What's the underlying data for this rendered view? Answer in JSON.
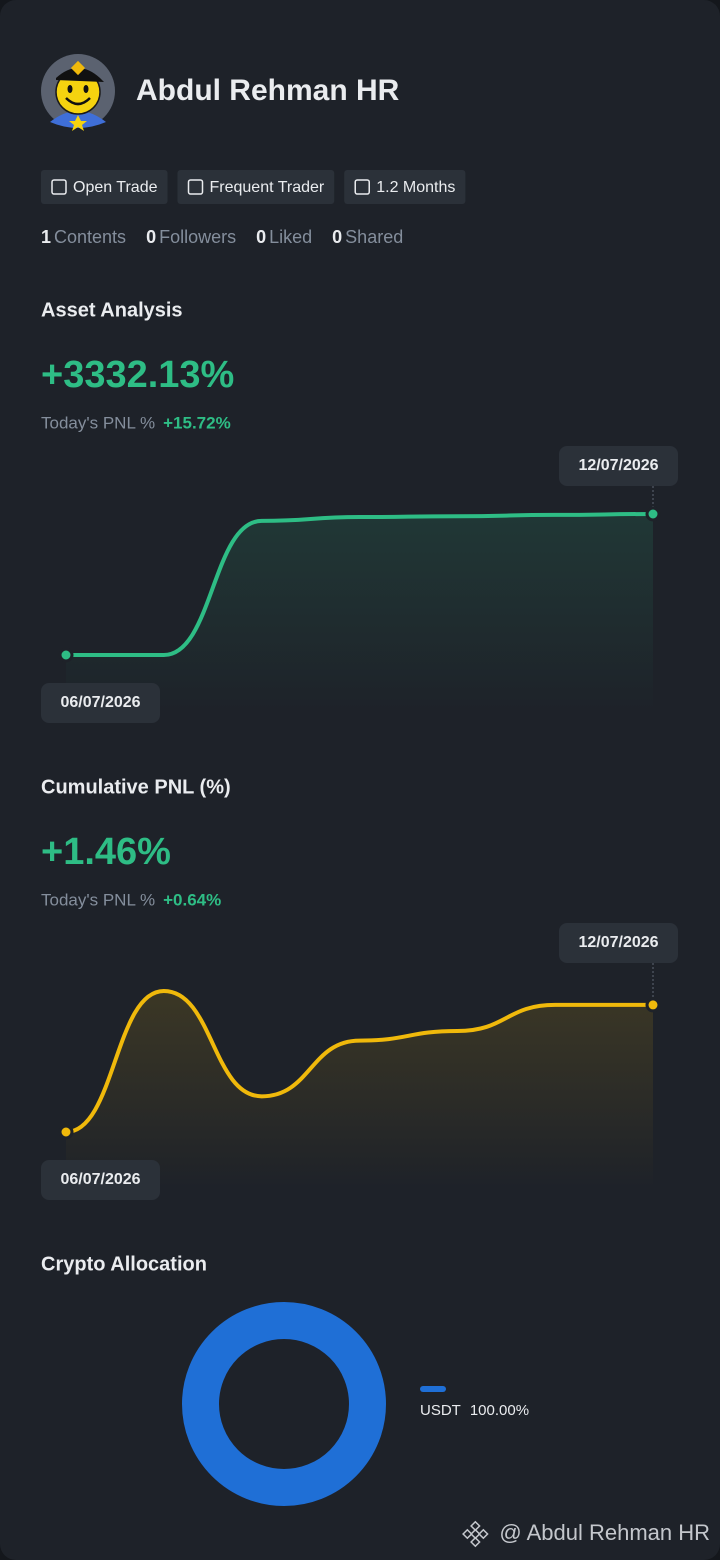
{
  "profile": {
    "name": "Abdul Rehman HR",
    "tags": [
      "Open Trade",
      "Frequent Trader",
      "1.2 Months"
    ],
    "stats": [
      {
        "value": 1,
        "label": "Contents"
      },
      {
        "value": 0,
        "label": "Followers"
      },
      {
        "value": 0,
        "label": "Liked"
      },
      {
        "value": 0,
        "label": "Shared"
      }
    ]
  },
  "chart_data": [
    {
      "type": "line",
      "title": "Asset Analysis",
      "headline": "+3332.13%",
      "pnl_label": "Today's PNL %",
      "pnl_value": "+15.72%",
      "categories": [
        "06/07/2026",
        null,
        null,
        null,
        null,
        null,
        "12/07/2026"
      ],
      "series": [
        {
          "color": "#2ebd85",
          "values": [
            0,
            0,
            3170,
            3260,
            3280,
            3310,
            3332.13
          ]
        }
      ]
    },
    {
      "type": "line",
      "title": "Cumulative PNL (%)",
      "headline": "+1.46%",
      "pnl_label": "Today's PNL %",
      "pnl_value": "+0.64%",
      "categories": [
        "06/07/2026",
        null,
        null,
        null,
        null,
        null,
        "12/07/2026"
      ],
      "series": [
        {
          "color": "#f0b90b",
          "values": [
            0,
            1.62,
            0.41,
            1.05,
            1.16,
            1.46,
            1.46
          ]
        }
      ]
    },
    {
      "type": "pie",
      "title": "Crypto Allocation",
      "categories": [
        "USDT"
      ],
      "values": [
        100
      ],
      "value_labels": [
        "100.00%"
      ],
      "colors": [
        "#1f6fd6"
      ]
    }
  ],
  "footer": "@ Abdul Rehman HR"
}
